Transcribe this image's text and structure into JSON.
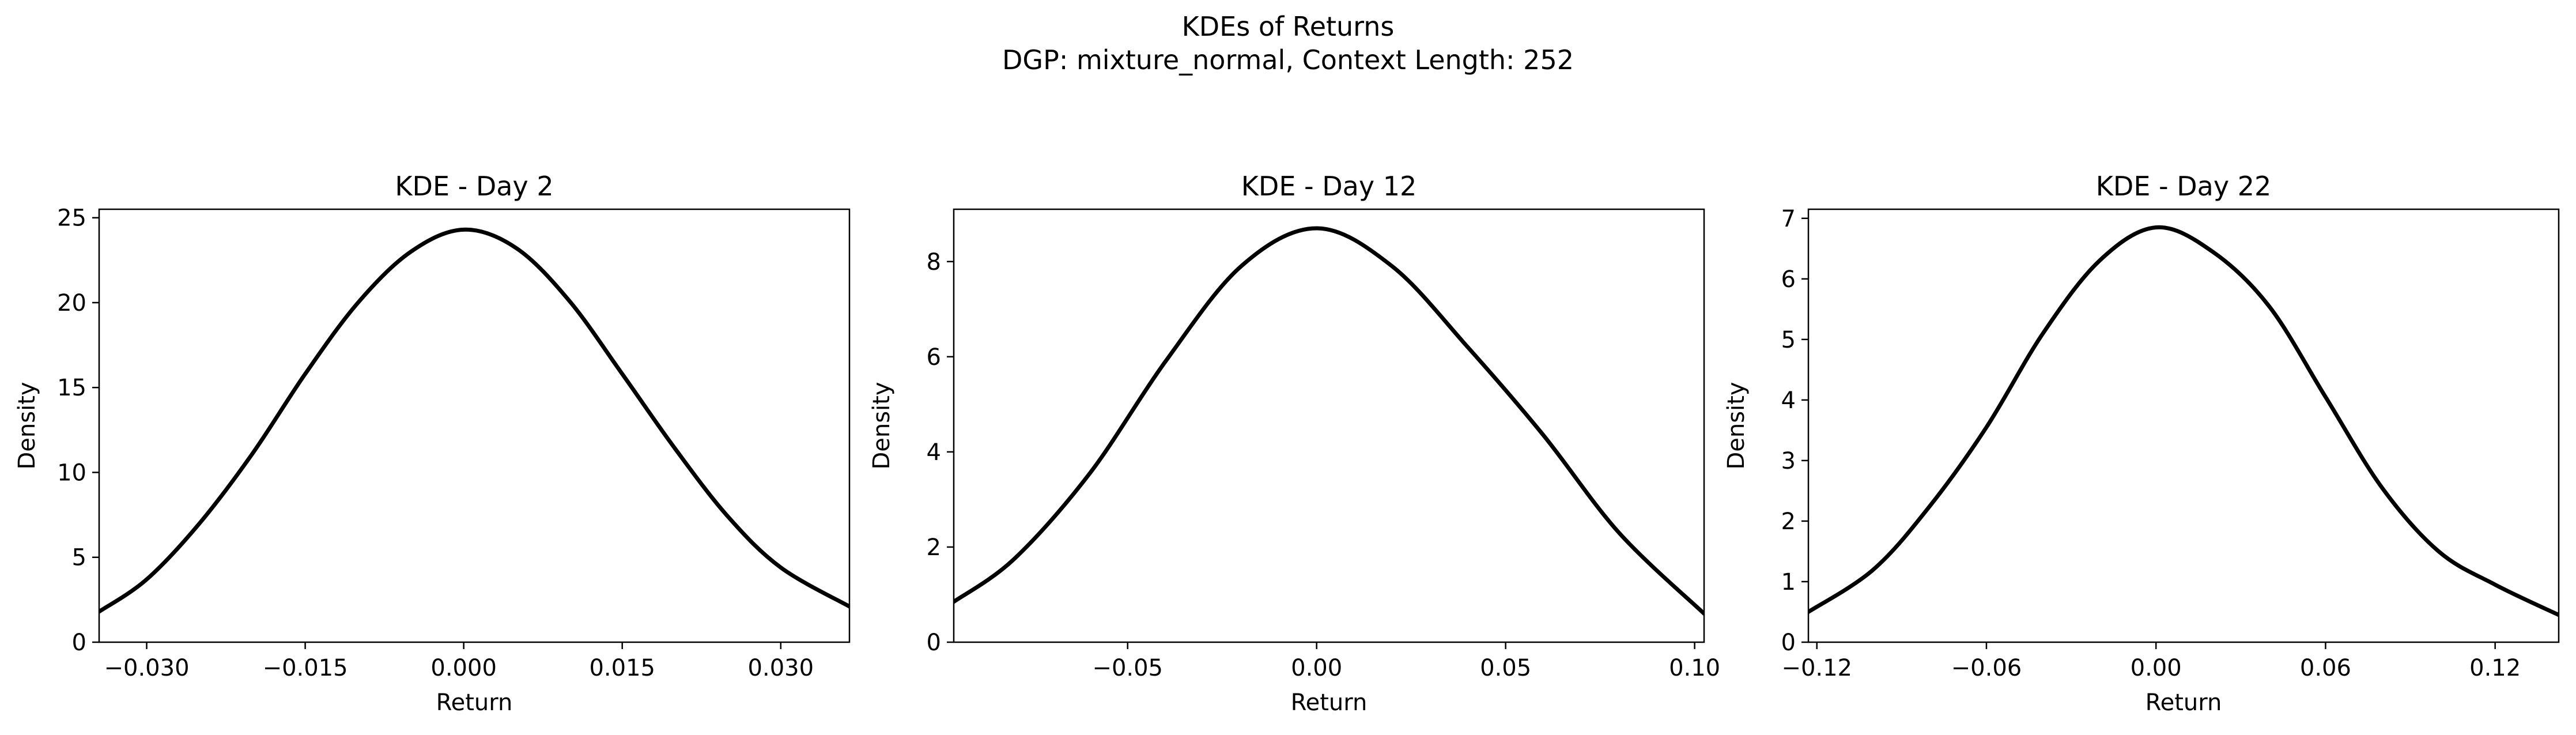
{
  "figure": {
    "title_line1": "KDEs of Returns",
    "title_line2": "DGP: mixture_normal, Context Length: 252"
  },
  "chart_data": [
    {
      "type": "line",
      "title": "KDE - Day 2",
      "xlabel": "Return",
      "ylabel": "Density",
      "xlim": [
        -0.0345,
        0.0365
      ],
      "ylim": [
        0,
        25.5
      ],
      "xticks": [
        -0.03,
        -0.015,
        0.0,
        0.015,
        0.03
      ],
      "xtick_labels": [
        "−0.030",
        "−0.015",
        "0.000",
        "0.015",
        "0.030"
      ],
      "yticks": [
        0,
        5,
        10,
        15,
        20,
        25
      ],
      "ytick_labels": [
        "0",
        "5",
        "10",
        "15",
        "20",
        "25"
      ],
      "grid": false,
      "series": [
        {
          "color": "#000000",
          "x": [
            -0.0345,
            -0.03,
            -0.025,
            -0.02,
            -0.015,
            -0.01,
            -0.005,
            0.0,
            0.005,
            0.01,
            0.015,
            0.02,
            0.025,
            0.03,
            0.0365
          ],
          "y": [
            1.8,
            3.7,
            7.0,
            11.1,
            15.8,
            20.0,
            23.0,
            24.3,
            23.2,
            20.1,
            15.8,
            11.4,
            7.4,
            4.4,
            2.1
          ]
        }
      ]
    },
    {
      "type": "line",
      "title": "KDE - Day 12",
      "xlabel": "Return",
      "ylabel": "Density",
      "xlim": [
        -0.096,
        0.1025
      ],
      "ylim": [
        0,
        9.1
      ],
      "xticks": [
        -0.05,
        0.0,
        0.05,
        0.1
      ],
      "xtick_labels": [
        "−0.05",
        "0.00",
        "0.05",
        "0.10"
      ],
      "yticks": [
        0,
        2,
        4,
        6,
        8
      ],
      "ytick_labels": [
        "0",
        "2",
        "4",
        "6",
        "8"
      ],
      "grid": false,
      "series": [
        {
          "color": "#000000",
          "x": [
            -0.096,
            -0.08,
            -0.06,
            -0.04,
            -0.02,
            0.0,
            0.02,
            0.04,
            0.06,
            0.08,
            0.1025
          ],
          "y": [
            0.85,
            1.75,
            3.55,
            5.9,
            7.9,
            8.7,
            7.9,
            6.2,
            4.35,
            2.3,
            0.6
          ]
        }
      ]
    },
    {
      "type": "line",
      "title": "KDE - Day 22",
      "xlabel": "Return",
      "ylabel": "Density",
      "xlim": [
        -0.123,
        0.1425
      ],
      "ylim": [
        0,
        7.15
      ],
      "xticks": [
        -0.12,
        -0.06,
        0.0,
        0.06,
        0.12
      ],
      "xtick_labels": [
        "−0.12",
        "−0.06",
        "0.00",
        "0.06",
        "0.12"
      ],
      "yticks": [
        0,
        1,
        2,
        3,
        4,
        5,
        6,
        7
      ],
      "ytick_labels": [
        "0",
        "1",
        "2",
        "3",
        "4",
        "5",
        "6",
        "7"
      ],
      "grid": false,
      "series": [
        {
          "color": "#000000",
          "x": [
            -0.123,
            -0.1,
            -0.08,
            -0.06,
            -0.04,
            -0.02,
            0.0,
            0.02,
            0.04,
            0.06,
            0.08,
            0.1,
            0.12,
            0.1425
          ],
          "y": [
            0.5,
            1.2,
            2.25,
            3.55,
            5.1,
            6.3,
            6.85,
            6.45,
            5.55,
            4.05,
            2.55,
            1.5,
            0.95,
            0.45
          ]
        }
      ]
    }
  ]
}
